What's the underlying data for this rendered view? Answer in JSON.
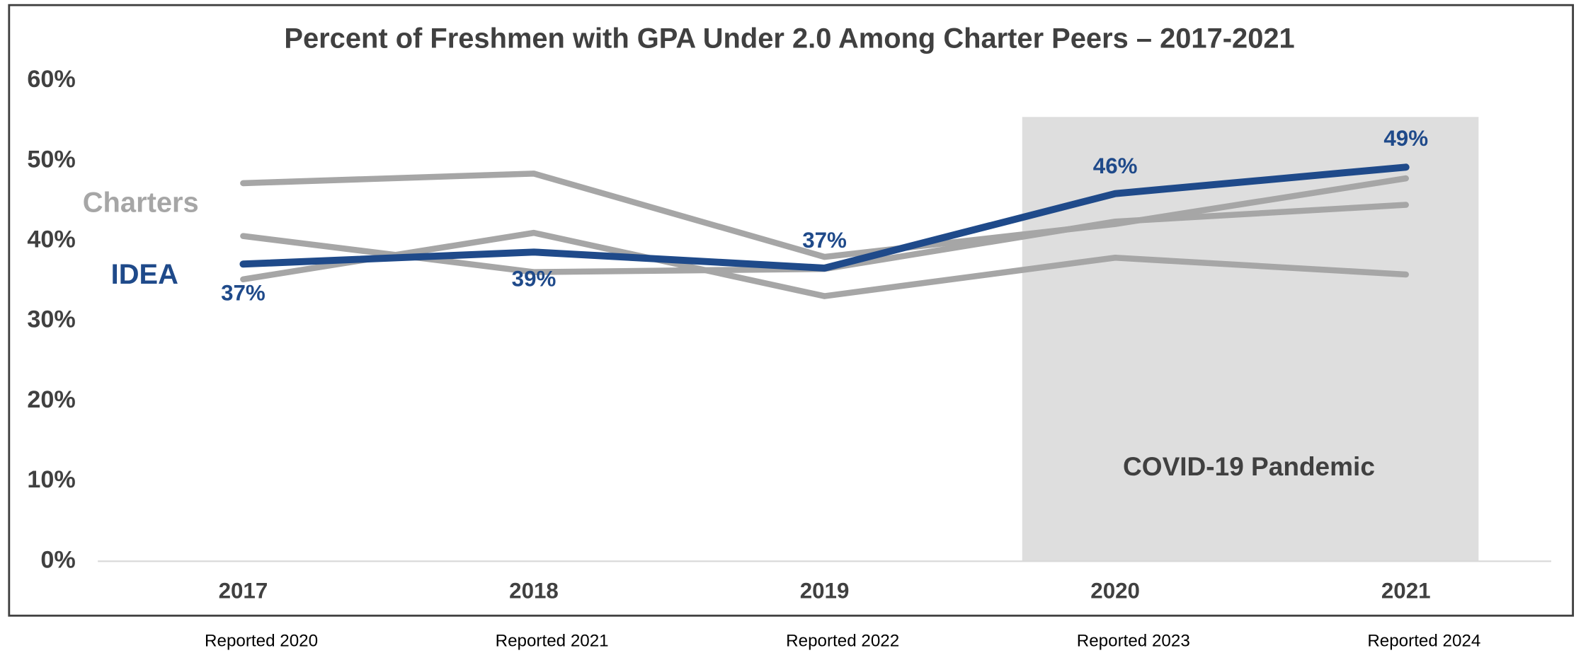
{
  "chart_data": {
    "type": "line",
    "title": "Percent of Freshmen with GPA Under 2.0 Among Charter Peers – 2017-2021",
    "categories": [
      "2017",
      "2018",
      "2019",
      "2020",
      "2021"
    ],
    "subcategories": [
      "Reported 2020",
      "Reported 2021",
      "Reported 2022",
      "Reported 2023",
      "Reported 2024"
    ],
    "series": [
      {
        "name": "Charters",
        "color": "#a6a6a6",
        "values": [
          47.2,
          48.4,
          38.0,
          42.1,
          47.8
        ]
      },
      {
        "color": "#a6a6a6",
        "values": [
          40.6,
          36.1,
          36.5,
          42.4,
          44.5
        ]
      },
      {
        "color": "#a6a6a6",
        "values": [
          35.2,
          41.0,
          33.1,
          37.9,
          35.8
        ]
      },
      {
        "name": "IDEA",
        "color": "#1f4a8a",
        "values": [
          37.1,
          38.6,
          36.6,
          45.9,
          49.2
        ],
        "value_labels": [
          "37%",
          "39%",
          "37%",
          "46%",
          "49%"
        ]
      }
    ],
    "annotations": [
      "COVID-19 Pandemic"
    ],
    "ylim": [
      0,
      60
    ],
    "yticks": [
      {
        "value": 0,
        "label": "0%"
      },
      {
        "value": 10,
        "label": "10%"
      },
      {
        "value": 20,
        "label": "20%"
      },
      {
        "value": 30,
        "label": "30%"
      },
      {
        "value": 40,
        "label": "40%"
      },
      {
        "value": 50,
        "label": "50%"
      },
      {
        "value": 60,
        "label": "60%"
      }
    ],
    "grid": false
  }
}
